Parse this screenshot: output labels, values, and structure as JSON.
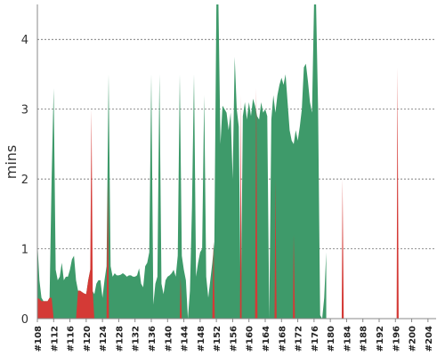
{
  "chart_data": {
    "type": "area",
    "xlabel": "",
    "ylabel": "mins",
    "ylim": [
      0,
      4.5
    ],
    "yticks": [
      0,
      1,
      2,
      3,
      4
    ],
    "grid": true,
    "x_tick_labels": [
      "#108",
      "#112",
      "#116",
      "#120",
      "#124",
      "#128",
      "#132",
      "#136",
      "#140",
      "#144",
      "#148",
      "#152",
      "#156",
      "#160",
      "#164",
      "#168",
      "#172",
      "#176",
      "#180",
      "#184",
      "#188",
      "#192",
      "#196",
      "#200",
      "#204"
    ],
    "x_range": [
      108,
      206
    ],
    "colors": {
      "pass": "#3e9a6a",
      "fail": "#d43a36"
    },
    "series": [
      {
        "id": "pass",
        "points": [
          [
            108,
            1.1
          ],
          [
            108.5,
            0.55
          ],
          [
            109,
            0.3
          ],
          [
            109.5,
            0.25
          ],
          [
            110,
            0.25
          ],
          [
            110.5,
            0.25
          ],
          [
            111,
            0.3
          ],
          [
            111.5,
            2.0
          ],
          [
            112,
            3.3
          ],
          [
            112.5,
            0.7
          ],
          [
            113,
            0.55
          ],
          [
            113.5,
            0.6
          ],
          [
            114,
            0.8
          ],
          [
            114.5,
            0.55
          ],
          [
            115,
            0.6
          ],
          [
            115.5,
            0.6
          ],
          [
            116,
            0.7
          ],
          [
            116.5,
            0.85
          ],
          [
            117,
            0.9
          ],
          [
            117.5,
            0.55
          ],
          [
            118,
            0.4
          ],
          [
            118.5,
            0.4
          ],
          [
            119,
            0.38
          ],
          [
            119.5,
            0.36
          ],
          [
            120,
            0.35
          ],
          [
            120.5,
            0.55
          ],
          [
            121,
            0.7
          ],
          [
            121.5,
            0.4
          ],
          [
            122,
            0.35
          ],
          [
            122.5,
            0.5
          ],
          [
            123,
            0.55
          ],
          [
            123.5,
            0.55
          ],
          [
            124,
            0.3
          ],
          [
            124.5,
            0.55
          ],
          [
            125,
            0.75
          ],
          [
            125.5,
            3.5
          ],
          [
            126,
            0.75
          ],
          [
            126.5,
            0.6
          ],
          [
            127,
            0.65
          ],
          [
            127.5,
            0.62
          ],
          [
            128,
            0.62
          ],
          [
            128.5,
            0.63
          ],
          [
            129,
            0.65
          ],
          [
            129.5,
            0.63
          ],
          [
            130,
            0.6
          ],
          [
            130.5,
            0.62
          ],
          [
            131,
            0.62
          ],
          [
            131.5,
            0.6
          ],
          [
            132,
            0.6
          ],
          [
            132.5,
            0.62
          ],
          [
            133,
            0.72
          ],
          [
            133.5,
            0.5
          ],
          [
            134,
            0.45
          ],
          [
            134.5,
            0.75
          ],
          [
            135,
            0.8
          ],
          [
            135.5,
            0.95
          ],
          [
            136,
            3.5
          ],
          [
            136.5,
            0.2
          ],
          [
            137,
            0.5
          ],
          [
            137.5,
            0.6
          ],
          [
            138,
            3.5
          ],
          [
            138.5,
            0.5
          ],
          [
            139,
            0.35
          ],
          [
            139.5,
            0.55
          ],
          [
            140,
            0.6
          ],
          [
            140.5,
            0.62
          ],
          [
            141,
            0.65
          ],
          [
            141.5,
            0.7
          ],
          [
            142,
            0.6
          ],
          [
            142.5,
            0.9
          ],
          [
            143,
            3.5
          ],
          [
            143.5,
            0.9
          ],
          [
            144,
            0.7
          ],
          [
            144.5,
            0.55
          ],
          [
            145,
            0.0
          ],
          [
            145.5,
            0.4
          ],
          [
            146,
            1.6
          ],
          [
            146.5,
            3.5
          ],
          [
            147,
            0.6
          ],
          [
            147.5,
            0.8
          ],
          [
            148,
            0.95
          ],
          [
            148.5,
            1.0
          ],
          [
            149,
            3.2
          ],
          [
            149.5,
            0.6
          ],
          [
            150,
            0.3
          ],
          [
            150.5,
            0.55
          ],
          [
            151,
            0.8
          ],
          [
            151.5,
            1.1
          ],
          [
            152,
            4.5
          ],
          [
            152.5,
            4.5
          ],
          [
            153,
            2.5
          ],
          [
            153.5,
            3.05
          ],
          [
            154,
            3.0
          ],
          [
            154.5,
            2.95
          ],
          [
            155,
            2.7
          ],
          [
            155.5,
            2.95
          ],
          [
            156,
            2.0
          ],
          [
            156.5,
            3.75
          ],
          [
            157,
            3.0
          ],
          [
            157.5,
            2.75
          ],
          [
            158,
            0.05
          ],
          [
            158.5,
            2.9
          ],
          [
            159,
            3.1
          ],
          [
            159.5,
            2.85
          ],
          [
            160,
            3.1
          ],
          [
            160.5,
            2.9
          ],
          [
            161,
            3.15
          ],
          [
            161.5,
            3.05
          ],
          [
            162,
            2.9
          ],
          [
            162.5,
            2.85
          ],
          [
            163,
            3.1
          ],
          [
            163.5,
            2.95
          ],
          [
            164,
            3.0
          ],
          [
            164.5,
            2.9
          ],
          [
            165,
            0.0
          ],
          [
            165.5,
            2.85
          ],
          [
            166,
            3.2
          ],
          [
            166.5,
            2.95
          ],
          [
            167,
            3.2
          ],
          [
            167.5,
            3.35
          ],
          [
            168,
            3.45
          ],
          [
            168.5,
            3.35
          ],
          [
            169,
            3.5
          ],
          [
            169.5,
            3.1
          ],
          [
            170,
            2.7
          ],
          [
            170.5,
            2.55
          ],
          [
            171,
            2.5
          ],
          [
            171.5,
            2.7
          ],
          [
            172,
            2.55
          ],
          [
            172.5,
            2.75
          ],
          [
            173,
            3.0
          ],
          [
            173.5,
            3.6
          ],
          [
            174,
            3.65
          ],
          [
            174.5,
            3.4
          ],
          [
            175,
            3.1
          ],
          [
            175.5,
            2.95
          ],
          [
            176,
            4.5
          ],
          [
            176.5,
            4.5
          ],
          [
            177,
            3.0
          ],
          [
            177.5,
            0.05
          ],
          [
            178,
            0.0
          ],
          [
            178.5,
            0.3
          ],
          [
            179,
            0.95
          ]
        ]
      },
      {
        "id": "fail",
        "points": [
          [
            108,
            0.3
          ],
          [
            108.5,
            0.28
          ],
          [
            109,
            0.25
          ],
          [
            109.5,
            0.25
          ],
          [
            110,
            0.25
          ],
          [
            110.5,
            0.25
          ],
          [
            111,
            0.3
          ],
          [
            111.5,
            0.3
          ],
          [
            112,
            0.0
          ],
          [
            112.5,
            0.0
          ],
          [
            117.5,
            0.0
          ],
          [
            118,
            0.4
          ],
          [
            118.5,
            0.4
          ],
          [
            119,
            0.38
          ],
          [
            119.5,
            0.36
          ],
          [
            120,
            0.35
          ],
          [
            120.5,
            0.55
          ],
          [
            121,
            0.7
          ],
          [
            121.3,
            3.0
          ],
          [
            121.6,
            0.4
          ],
          [
            122,
            0.0
          ],
          [
            125,
            0.0
          ],
          [
            125.3,
            2.0
          ],
          [
            125.6,
            0.0
          ],
          [
            143,
            0.0
          ],
          [
            143.2,
            0.6
          ],
          [
            143.5,
            0.0
          ],
          [
            151,
            0.0
          ],
          [
            151.3,
            1.1
          ],
          [
            151.6,
            0.0
          ],
          [
            157.8,
            0.0
          ],
          [
            158,
            3.2
          ],
          [
            158.2,
            0.0
          ],
          [
            161.5,
            0.0
          ],
          [
            161.8,
            3.3
          ],
          [
            162.1,
            0.0
          ],
          [
            166.3,
            0.0
          ],
          [
            166.5,
            2.0
          ],
          [
            166.8,
            0.0
          ],
          [
            170.8,
            0.0
          ],
          [
            171,
            1.2
          ],
          [
            171.3,
            0.0
          ],
          [
            182.8,
            0.0
          ],
          [
            183,
            2.0
          ],
          [
            183.3,
            0.0
          ],
          [
            196.3,
            0.0
          ],
          [
            196.5,
            3.6
          ],
          [
            196.8,
            0.0
          ],
          [
            206,
            0.0
          ]
        ]
      }
    ]
  }
}
